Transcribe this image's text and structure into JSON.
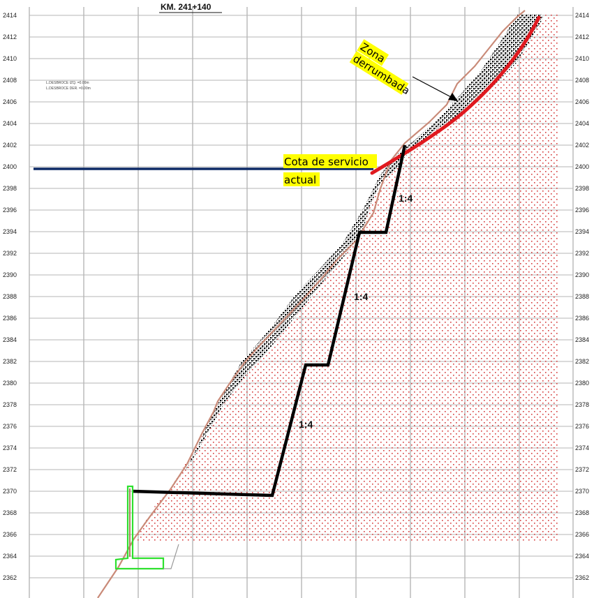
{
  "title": "KM. 241+140",
  "notes": [
    "L.DESBROCE IZQ. =0.00m",
    "L.DESBROCE DER. =0.00m"
  ],
  "elevation_ticks": [
    "2414",
    "2412",
    "2410",
    "2408",
    "2406",
    "2404",
    "2402",
    "2400",
    "2398",
    "2396",
    "2394",
    "2392",
    "2390",
    "2388",
    "2386",
    "2384",
    "2382",
    "2380",
    "2378",
    "2376",
    "2374",
    "2372",
    "2370",
    "2368",
    "2366",
    "2364",
    "2362"
  ],
  "labels": {
    "zona_line1": "Zona",
    "zona_line2": "derrumbada",
    "cota_line1": "Cota de servicio",
    "cota_line2": "actual",
    "slope_top": "1:4",
    "slope_mid": "1:4",
    "slope_low": "1:4"
  },
  "colors": {
    "service_line": "#0d2a66",
    "failure_line": "#e0191f",
    "terrain_line": "#c98a78",
    "highlight": "#ffff00",
    "hatch": "#d63a3a",
    "wall": "#2ee02e"
  }
}
